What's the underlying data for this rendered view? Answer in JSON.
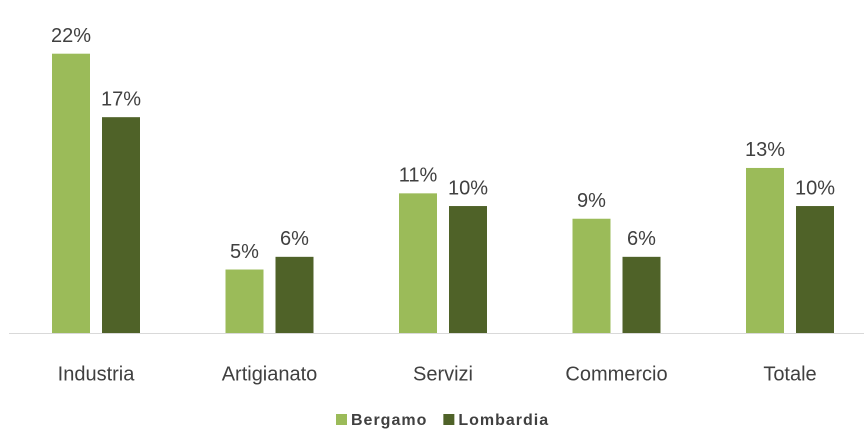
{
  "chart_data": {
    "type": "bar",
    "categories": [
      "Industria",
      "Artigianato",
      "Servizi",
      "Commercio",
      "Totale"
    ],
    "series": [
      {
        "name": "Bergamo",
        "color": "#9bbb59",
        "values": [
          22,
          5,
          11,
          9,
          13
        ],
        "value_labels": [
          "22%",
          "5%",
          "11%",
          "9%",
          "13%"
        ]
      },
      {
        "name": "Lombardia",
        "color": "#4f6228",
        "values": [
          17,
          6,
          10,
          6,
          10
        ],
        "value_labels": [
          "17%",
          "6%",
          "10%",
          "6%",
          "10%"
        ]
      }
    ],
    "ylim": [
      0,
      23
    ],
    "legend": "bottom"
  }
}
